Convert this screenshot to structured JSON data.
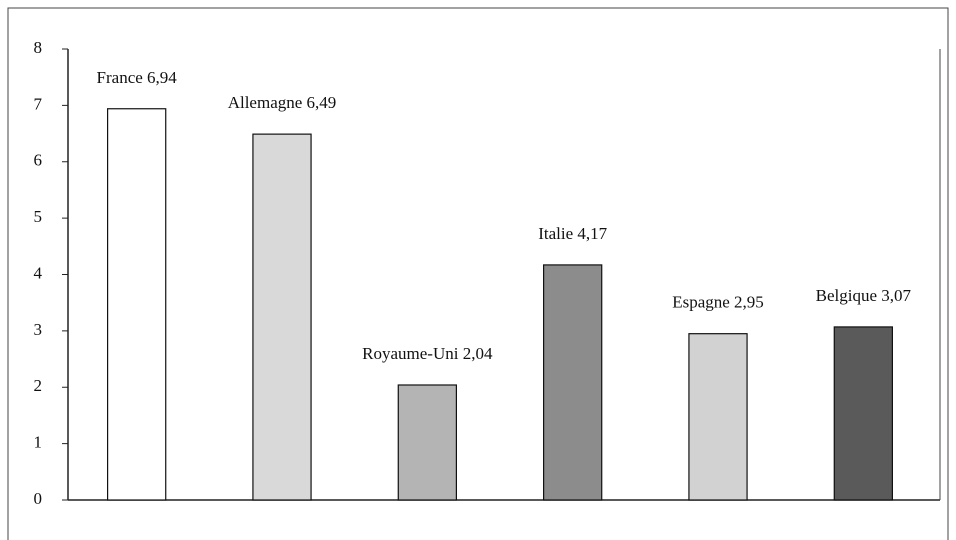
{
  "chart_data": {
    "type": "bar",
    "categories": [
      "France",
      "Allemagne",
      "Royaume-Uni",
      "Italie",
      "Espagne",
      "Belgique"
    ],
    "values": [
      6.94,
      6.49,
      2.04,
      4.17,
      2.95,
      3.07
    ],
    "value_labels": [
      "6,94",
      "6,49",
      "2,04",
      "4,17",
      "2,95",
      "3,07"
    ],
    "colors": [
      "#ffffff",
      "#d9d9d9",
      "#b4b4b4",
      "#8c8c8c",
      "#d2d2d2",
      "#5a5a5a"
    ],
    "ylim": [
      0,
      8
    ],
    "yticks": [
      0,
      1,
      2,
      3,
      4,
      5,
      6,
      7,
      8
    ],
    "grid": false
  }
}
